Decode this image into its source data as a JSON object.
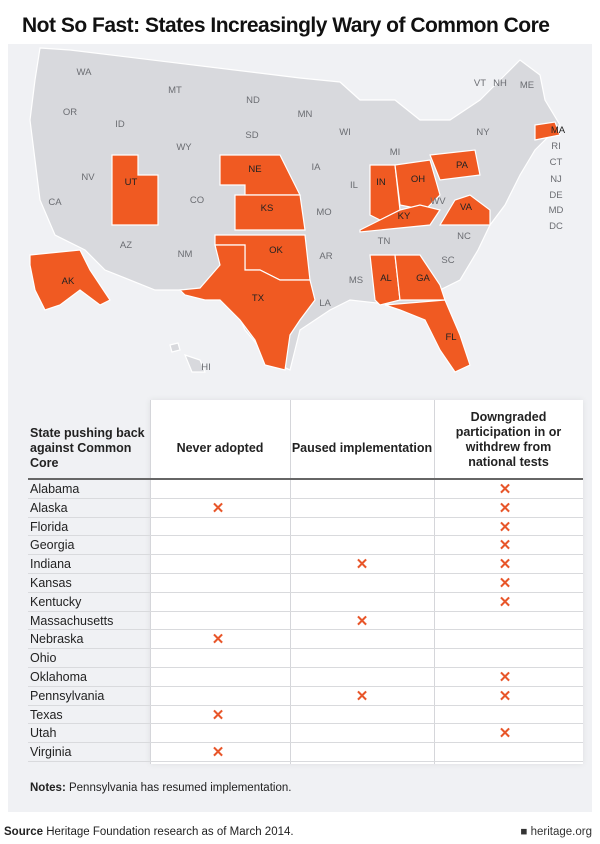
{
  "title": "Not So Fast: States Increasingly Wary of Common Core",
  "colors": {
    "highlight": "#f05a22",
    "state": "#d8d9dd",
    "mark": "#e8562a",
    "panel": "#f0f1f4"
  },
  "map": {
    "highlighted_states": [
      "UT",
      "NE",
      "KS",
      "OK",
      "TX",
      "IN",
      "OH",
      "KY",
      "PA",
      "VA",
      "AL",
      "GA",
      "FL",
      "MA",
      "AK"
    ],
    "labels": [
      "WA",
      "MT",
      "ND",
      "MN",
      "OR",
      "ID",
      "WY",
      "SD",
      "WI",
      "MI",
      "NY",
      "VT",
      "NH",
      "ME",
      "MA",
      "RI",
      "CT",
      "NJ",
      "DE",
      "MD",
      "DC",
      "PA",
      "OH",
      "IN",
      "IL",
      "IA",
      "NE",
      "NV",
      "UT",
      "CO",
      "KS",
      "MO",
      "KY",
      "WV",
      "VA",
      "CA",
      "AZ",
      "NM",
      "OK",
      "AR",
      "TN",
      "NC",
      "SC",
      "MS",
      "AL",
      "GA",
      "TX",
      "LA",
      "FL",
      "AK",
      "HI"
    ]
  },
  "table": {
    "headers": [
      "State pushing back against Common Core",
      "Never adopted",
      "Paused implementation",
      "Downgraded participation in or withdrew from national tests"
    ],
    "mark_symbol": "✕",
    "rows": [
      {
        "state": "Alabama",
        "never": false,
        "paused": false,
        "downgraded": true
      },
      {
        "state": "Alaska",
        "never": true,
        "paused": false,
        "downgraded": true
      },
      {
        "state": "Florida",
        "never": false,
        "paused": false,
        "downgraded": true
      },
      {
        "state": "Georgia",
        "never": false,
        "paused": false,
        "downgraded": true
      },
      {
        "state": "Indiana",
        "never": false,
        "paused": true,
        "downgraded": true
      },
      {
        "state": "Kansas",
        "never": false,
        "paused": false,
        "downgraded": true
      },
      {
        "state": "Kentucky",
        "never": false,
        "paused": false,
        "downgraded": true
      },
      {
        "state": "Massachusetts",
        "never": false,
        "paused": true,
        "downgraded": false
      },
      {
        "state": "Nebraska",
        "never": true,
        "paused": false,
        "downgraded": false
      },
      {
        "state": "Ohio",
        "never": false,
        "paused": false,
        "downgraded": false
      },
      {
        "state": "Oklahoma",
        "never": false,
        "paused": false,
        "downgraded": true
      },
      {
        "state": "Pennsylvania",
        "never": false,
        "paused": true,
        "downgraded": true
      },
      {
        "state": "Texas",
        "never": true,
        "paused": false,
        "downgraded": false
      },
      {
        "state": "Utah",
        "never": false,
        "paused": false,
        "downgraded": true
      },
      {
        "state": "Virginia",
        "never": true,
        "paused": false,
        "downgraded": false
      }
    ]
  },
  "notes": {
    "label": "Notes:",
    "text": " Pennsylvania has resumed implementation."
  },
  "source": {
    "label": "Source",
    "text": " Heritage Foundation research as of March 2014."
  },
  "brand": "heritage.org"
}
